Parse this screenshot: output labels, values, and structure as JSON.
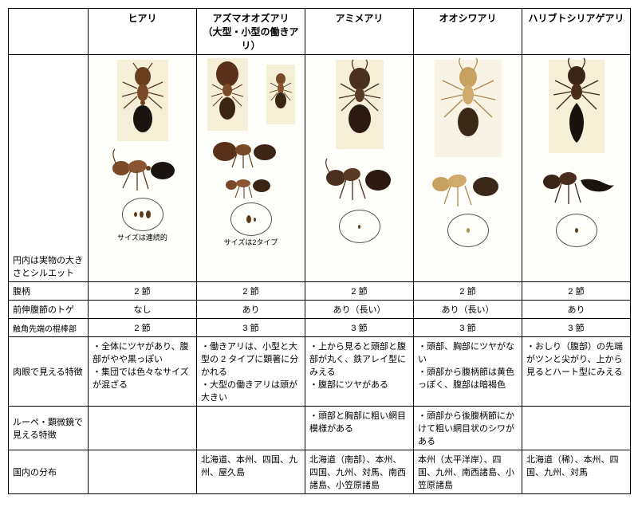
{
  "columns": [
    {
      "name": "ヒアリ",
      "sub": ""
    },
    {
      "name": "アズマオオズアリ",
      "sub": "（大型・小型の働きアリ）"
    },
    {
      "name": "アミメアリ",
      "sub": ""
    },
    {
      "name": "オオシワアリ",
      "sub": ""
    },
    {
      "name": "ハリブトシリアゲアリ",
      "sub": ""
    }
  ],
  "rows": {
    "silhouette_label": "円内は実物の大きさとシルエット",
    "size_caption_0": "サイズは連続的",
    "size_caption_1": "サイズは2タイプ",
    "petiole": {
      "label": "腹柄",
      "vals": [
        "2 節",
        "2 節",
        "2 節",
        "2 節",
        "2 節"
      ]
    },
    "spine": {
      "label": "前伸腹節のトゲ",
      "vals": [
        "なし",
        "あり",
        "あり（長い）",
        "あり（長い）",
        "あり"
      ]
    },
    "club": {
      "label": "触角先端の棍棒部",
      "vals": [
        "2 節",
        "3 節",
        "3 節",
        "3 節",
        "3 節"
      ]
    },
    "naked": {
      "label": "肉眼で見える特徴",
      "vals": [
        "・全体にツヤがあり、腹部がやや黒っぽい\n・集団では色々なサイズが混ざる",
        "・働きアリは、小型と大型の 2 タイプに顕著に分かれる\n・大型の働きアリは頭が大きい",
        "・上から見ると頭部と腹部が丸く、鉄アレイ型にみえる\n・腹部にツヤがある",
        "・頭部、胸部にツヤがない\n・頭部から腹柄節は黄色っぽく、腹部は暗褐色",
        "・おしり（腹部）の先端がツンと尖がり、上から見るとハート型にみえる"
      ]
    },
    "microscope": {
      "label": "ルーペ・顕微鏡で見える特徴",
      "vals": [
        "",
        "",
        "・頭部と胸部に粗い網目模様がある",
        "・頭部から後腹柄節にかけて粗い網目状のシワがある",
        ""
      ]
    },
    "dist": {
      "label": "国内の分布",
      "vals": [
        "",
        "北海道、本州、四国、九州、屋久島",
        "北海道（南部）、本州、四国、九州、対馬、南西諸島、小笠原諸島",
        "本州（太平洋岸）、四国、九州、南西諸島、小笠原諸島",
        "北海道（稀）、本州、四国、九州、対馬"
      ]
    }
  },
  "ant_colors": {
    "hiari_body": "#6b3f1e",
    "hiari_gaster": "#1a1410",
    "azuma_body": "#7a4a28",
    "azuma_head": "#5a3018",
    "amime_body": "#4a3020",
    "amime_gaster": "#2a1a12",
    "ooshiwa_body": "#c8a060",
    "ooshiwa_gaster": "#3a2818",
    "haributo_body": "#3a2418",
    "haributo_gaster": "#1a120c"
  },
  "bg": "#f5f0e0"
}
